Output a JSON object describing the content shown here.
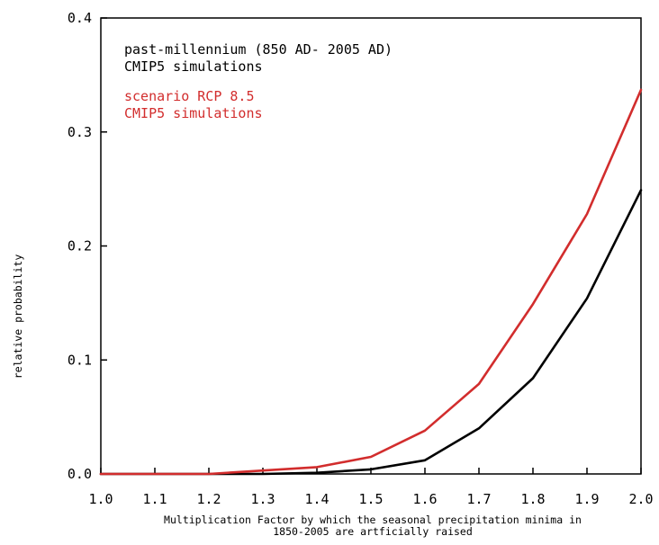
{
  "chart_data": {
    "type": "line",
    "title": "",
    "xlabel_lines": [
      "Multiplication Factor by which the seasonal precipitation minima in",
      "1850-2005 are artficially raised"
    ],
    "ylabel": "relative probability",
    "xlim": [
      1.0,
      2.0
    ],
    "ylim": [
      0.0,
      0.4
    ],
    "x_ticks": [
      "1.0",
      "1.1",
      "1.2",
      "1.3",
      "1.4",
      "1.5",
      "1.6",
      "1.7",
      "1.8",
      "1.9",
      "2.0"
    ],
    "y_ticks": [
      "0.0",
      "0.1",
      "0.2",
      "0.3",
      "0.4"
    ],
    "grid": false,
    "legend_position": "top-left",
    "x": [
      1.0,
      1.1,
      1.2,
      1.3,
      1.4,
      1.5,
      1.6,
      1.7,
      1.8,
      1.9,
      2.0
    ],
    "series": [
      {
        "legend_lines": [
          "past-millennium (850 AD- 2005 AD)",
          "CMIP5 simulations"
        ],
        "color": "#000000",
        "values": [
          0.0,
          0.0,
          0.0,
          0.0,
          0.001,
          0.004,
          0.012,
          0.04,
          0.084,
          0.154,
          0.249
        ]
      },
      {
        "legend_lines": [
          "scenario RCP 8.5",
          "CMIP5 simulations"
        ],
        "color": "#d22d2d",
        "values": [
          0.0,
          0.0,
          0.0,
          0.003,
          0.006,
          0.015,
          0.038,
          0.079,
          0.149,
          0.228,
          0.337
        ]
      }
    ]
  }
}
